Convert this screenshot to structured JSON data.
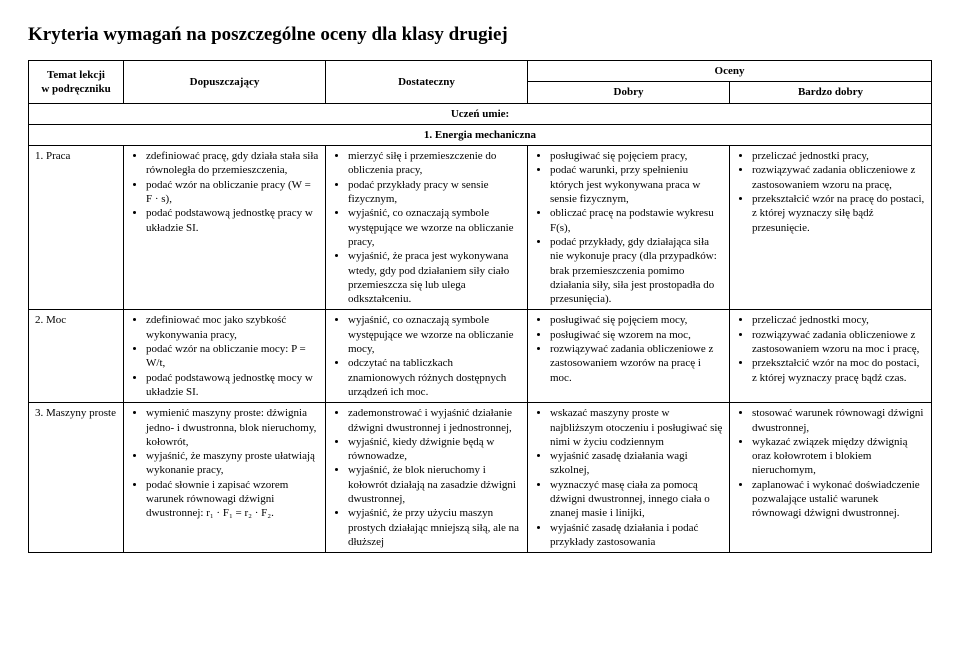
{
  "title": "Kryteria wymagań na poszczególne oceny dla klasy drugiej",
  "headers": {
    "topic_col1": "Temat lekcji",
    "topic_col2": "w podręczniku",
    "grades_head": "Oceny",
    "c1": "Dopuszczający",
    "c2": "Dostateczny",
    "c3": "Dobry",
    "c4": "Bardzo dobry",
    "student": "Uczeń umie:",
    "section1": "1. Energia mechaniczna"
  },
  "rows": {
    "r1": {
      "topic": "1. Praca",
      "c1": [
        "zdefiniować pracę, gdy działa stała siła równoległa do przemieszczenia,",
        "podać wzór na obliczanie pracy (W = F · s),",
        "podać podstawową jednostkę pracy w układzie SI."
      ],
      "c2": [
        "mierzyć siłę i przemieszczenie do obliczenia pracy,",
        "podać przykłady pracy w sensie fizycznym,",
        "wyjaśnić, co oznaczają symbole występujące we wzorze na obliczanie pracy,",
        "wyjaśnić, że praca jest wykonywana wtedy, gdy pod działaniem siły ciało przemieszcza się lub ulega odkształceniu."
      ],
      "c3": [
        "posługiwać się pojęciem pracy,",
        "podać warunki, przy spełnieniu których jest wykonywana praca w sensie fizycznym,",
        "obliczać pracę na podstawie wykresu F(s),",
        "podać przykłady, gdy działająca siła nie wykonuje pracy (dla przypadków: brak przemieszczenia pomimo działania siły, siła jest prostopadła do przesunięcia)."
      ],
      "c4": [
        "przeliczać jednostki pracy,",
        "rozwiązywać zadania obliczeniowe z zastosowaniem wzoru na pracę,",
        "przekształcić wzór na pracę do postaci, z której wyznaczy siłę bądź przesunięcie."
      ]
    },
    "r2": {
      "topic": "2. Moc",
      "c1": [
        "zdefiniować moc jako szybkość wykonywania pracy,",
        "podać wzór na obliczanie mocy: P = W/t,",
        "podać podstawową jednostkę mocy w układzie SI."
      ],
      "c2": [
        "wyjaśnić, co oznaczają symbole występujące we wzorze na obliczanie mocy,",
        "odczytać na tabliczkach znamionowych różnych dostępnych urządzeń ich moc."
      ],
      "c3": [
        "posługiwać się pojęciem mocy,",
        "posługiwać się wzorem na moc,",
        "rozwiązywać zadania obliczeniowe z zastosowaniem wzorów na pracę i moc."
      ],
      "c4": [
        "przeliczać jednostki mocy,",
        "rozwiązywać zadania obliczeniowe z zastosowaniem wzoru na moc i pracę,",
        "przekształcić wzór na moc do postaci, z której wyznaczy pracę bądź czas."
      ]
    },
    "r3": {
      "topic": "3. Maszyny proste",
      "c1": [
        "wymienić maszyny proste: dźwignia jedno- i dwustronna, blok nieruchomy, kołowrót,",
        "wyjaśnić, że maszyny proste ułatwiają wykonanie pracy,",
        "podać słownie i zapisać wzorem warunek równowagi dźwigni dwustronnej: r₁ · F₁ = r₂ · F₂."
      ],
      "c2": [
        "zademonstrować i wyjaśnić działanie dźwigni dwustronnej i jednostronnej,",
        "wyjaśnić, kiedy dźwignie będą w równowadze,",
        "wyjaśnić, że blok nieruchomy i kołowrót działają na zasadzie dźwigni dwustronnej,",
        "wyjaśnić, że przy użyciu maszyn prostych działając mniejszą siłą, ale na dłuższej"
      ],
      "c3": [
        "wskazać maszyny proste w najbliższym otoczeniu i posługiwać się nimi w życiu codziennym",
        "wyjaśnić zasadę działania wagi szkolnej,",
        "wyznaczyć masę ciała za pomocą dźwigni dwustronnej, innego ciała o znanej masie i linijki,",
        "wyjaśnić zasadę działania i podać przykłady zastosowania"
      ],
      "c4": [
        "stosować warunek równowagi dźwigni dwustronnej,",
        "wykazać związek między dźwignią oraz kołowrotem i blokiem nieruchomym,",
        "zaplanować i wykonać doświadczenie pozwalające ustalić warunek równowagi dźwigni dwustronnej."
      ]
    }
  }
}
